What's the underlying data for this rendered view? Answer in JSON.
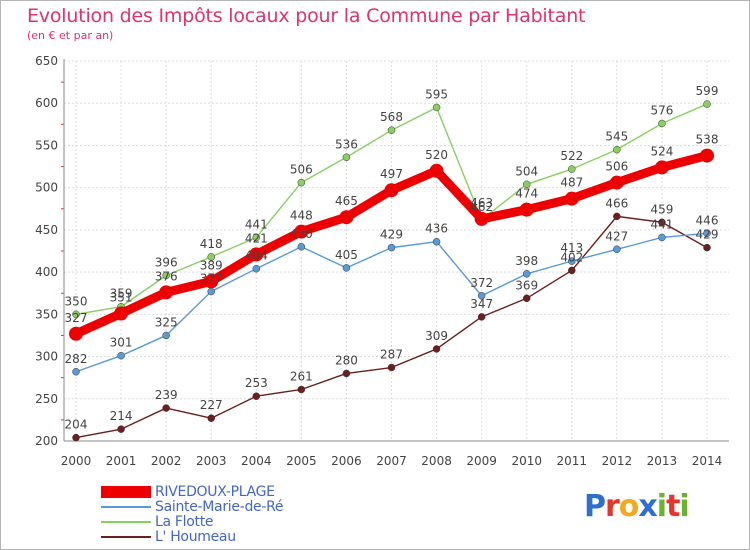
{
  "title": "Evolution des Impôts locaux pour la Commune par Habitant",
  "subtitle": "(en € et par an)",
  "logo": {
    "chars": [
      "P",
      "r",
      "o",
      "x",
      "i",
      "t",
      "i"
    ],
    "colors": [
      "#2d6fd0",
      "#e6352b",
      "#f4a81c",
      "#2d6fd0",
      "#6ab42d",
      "#e6352b",
      "#6ab42d"
    ]
  },
  "chart_data": {
    "type": "line",
    "x": [
      "2000",
      "2001",
      "2002",
      "2003",
      "2004",
      "2005",
      "2006",
      "2007",
      "2008",
      "2009",
      "2010",
      "2011",
      "2012",
      "2013",
      "2014"
    ],
    "ylim": [
      200,
      650
    ],
    "yticks": [
      "200",
      "250",
      "300",
      "350",
      "400",
      "450",
      "500",
      "550",
      "600",
      "650"
    ],
    "grid": true,
    "legend": "bottom-left",
    "series": [
      {
        "name": "RIVEDOUX-PLAGE",
        "color": "#ee0000",
        "values": [
          327,
          351,
          376,
          389,
          421,
          448,
          465,
          497,
          520,
          463,
          474,
          487,
          506,
          524,
          538
        ]
      },
      {
        "name": "Sainte-Marie-de-Ré",
        "color": "#5a9ad8",
        "values": [
          282,
          301,
          325,
          377,
          404,
          430,
          405,
          429,
          436,
          372,
          398,
          413,
          427,
          441,
          446
        ]
      },
      {
        "name": "La Flotte",
        "color": "#88d060",
        "values": [
          350,
          359,
          396,
          418,
          441,
          506,
          536,
          568,
          595,
          462,
          504,
          522,
          545,
          576,
          599
        ]
      },
      {
        "name": "L' Houmeau",
        "color": "#6b1f1f",
        "values": [
          204,
          214,
          239,
          227,
          253,
          261,
          280,
          287,
          309,
          347,
          369,
          402,
          466,
          459,
          429
        ]
      }
    ]
  }
}
